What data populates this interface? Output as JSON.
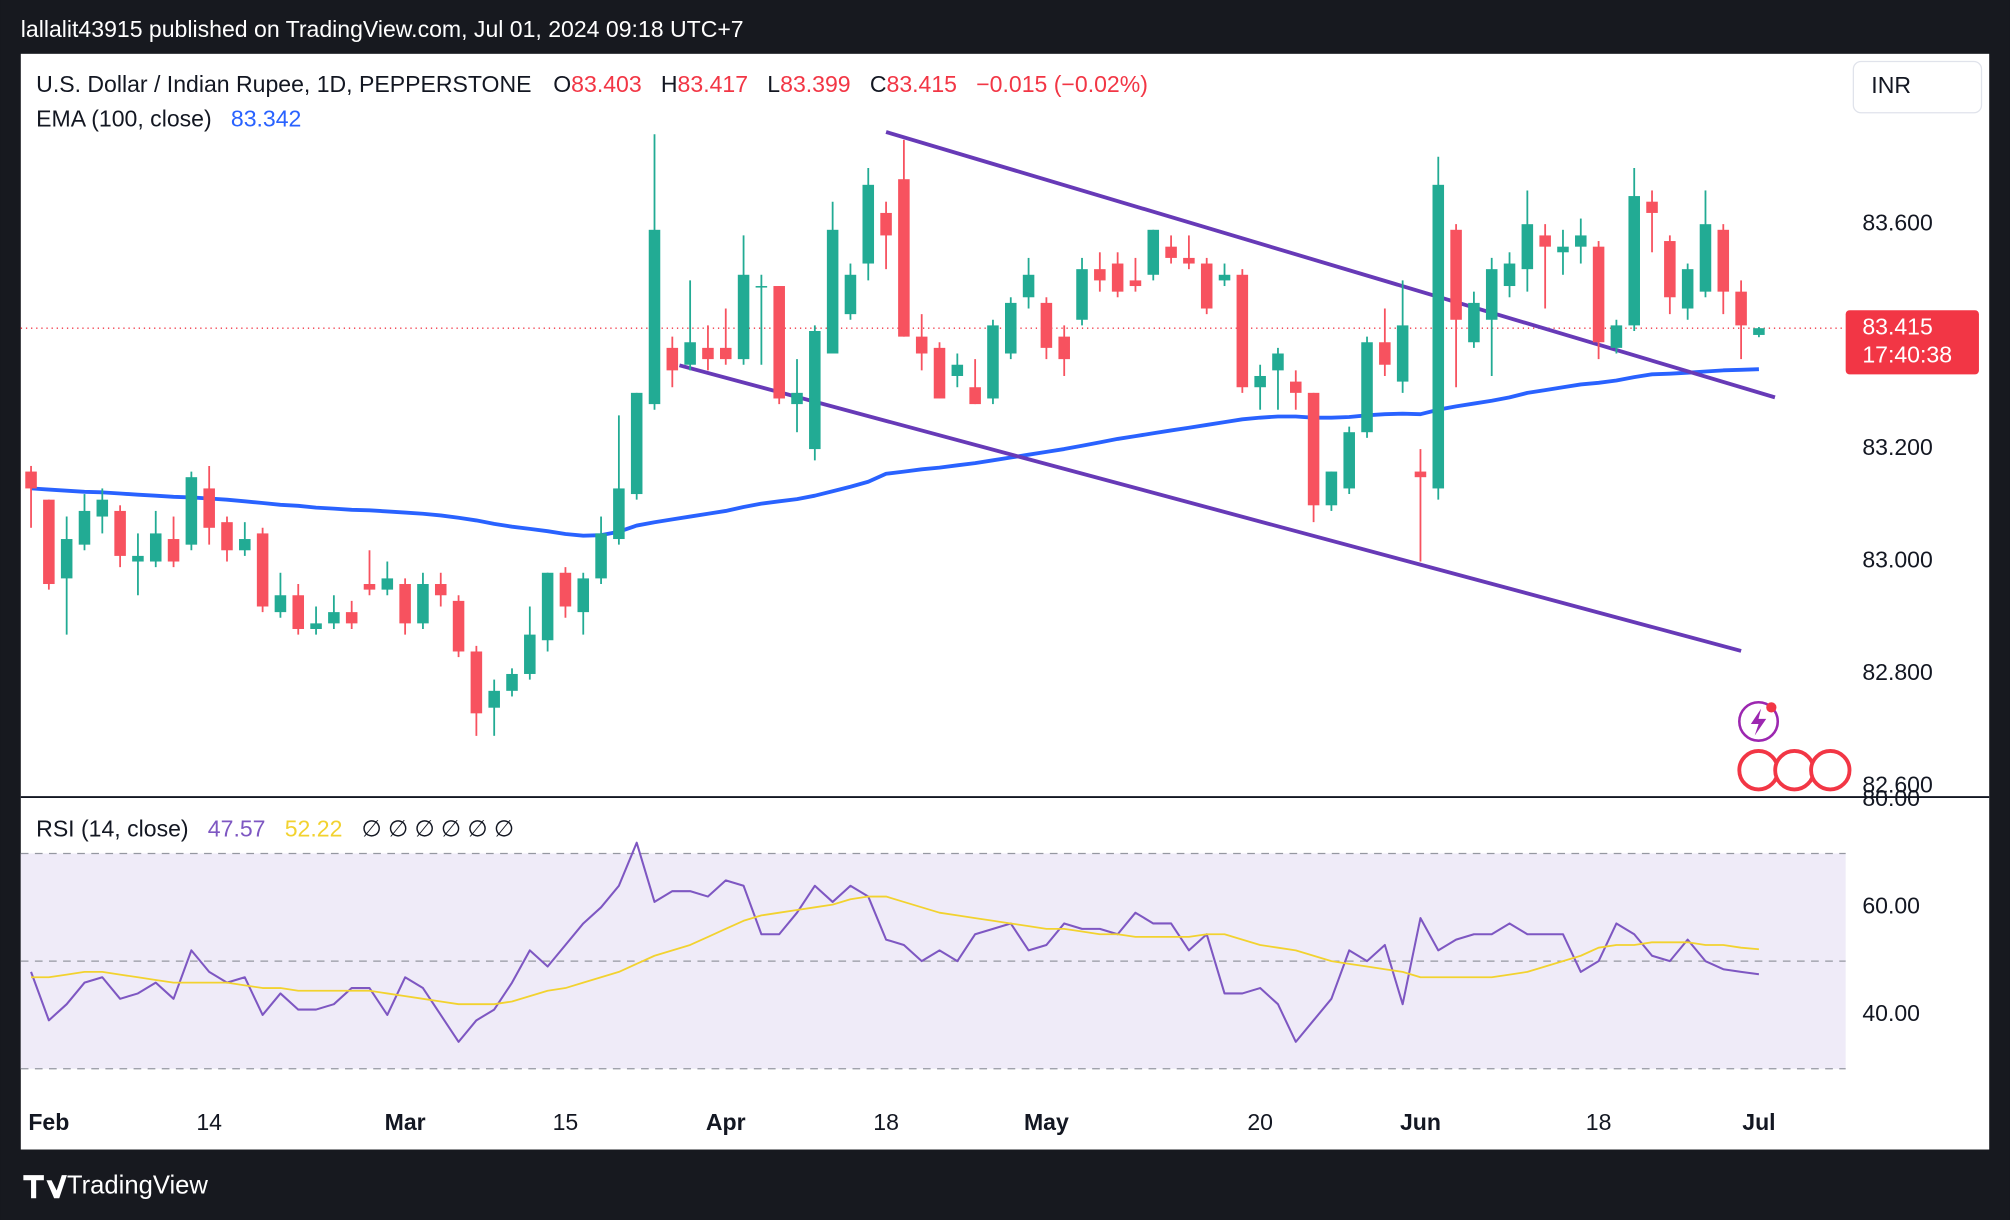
{
  "header": {
    "publisher": "lallalit43915 published on TradingView.com, Jul 01, 2024 09:18 UTC+7"
  },
  "branding": {
    "logo": "TradingView"
  },
  "chart_data": {
    "type": "candlestick",
    "title": "U.S. Dollar / Indian Rupee, 1D, PEPPERSTONE",
    "legend_labels": [
      "O",
      "H",
      "L",
      "C"
    ],
    "change_label": "−0.015 (−0.02%)",
    "currency": "INR",
    "countdown": "17:40:38",
    "up_color": "#22ab94",
    "down_color": "#f7525f",
    "price_line": true,
    "categories": [
      null,
      "Feb",
      null,
      null,
      null,
      null,
      null,
      null,
      null,
      null,
      "14",
      null,
      null,
      null,
      null,
      null,
      null,
      null,
      null,
      null,
      null,
      "Mar",
      null,
      null,
      null,
      null,
      null,
      null,
      null,
      null,
      "15",
      null,
      null,
      null,
      null,
      null,
      null,
      null,
      null,
      "Apr",
      null,
      null,
      null,
      null,
      null,
      null,
      null,
      null,
      "18",
      null,
      null,
      null,
      null,
      null,
      null,
      null,
      null,
      "May",
      null,
      null,
      null,
      null,
      null,
      null,
      null,
      null,
      null,
      null,
      null,
      "20",
      null,
      null,
      null,
      null,
      null,
      null,
      null,
      null,
      "Jun",
      null,
      null,
      null,
      null,
      null,
      null,
      null,
      null,
      null,
      "18",
      null,
      null,
      null,
      null,
      null,
      null,
      null,
      null,
      "Jul"
    ],
    "open": [
      83.16,
      83.11,
      82.97,
      83.03,
      83.08,
      83.09,
      83.0,
      83.0,
      83.04,
      83.03,
      83.13,
      83.07,
      83.02,
      83.05,
      82.91,
      82.94,
      82.88,
      82.89,
      82.91,
      82.96,
      82.95,
      82.96,
      82.89,
      82.96,
      82.93,
      82.84,
      82.74,
      82.77,
      82.8,
      82.86,
      82.98,
      82.91,
      82.97,
      83.04,
      83.12,
      83.28,
      83.38,
      83.35,
      83.38,
      83.38,
      83.36,
      83.49,
      83.49,
      83.28,
      83.2,
      83.37,
      83.44,
      83.53,
      83.62,
      83.68,
      83.4,
      83.38,
      83.33,
      83.31,
      83.29,
      83.37,
      83.47,
      83.46,
      83.4,
      83.43,
      83.52,
      83.53,
      83.5,
      83.51,
      83.56,
      83.54,
      83.53,
      83.5,
      83.51,
      83.31,
      83.34,
      83.32,
      83.3,
      83.1,
      83.13,
      83.23,
      83.39,
      83.32,
      83.16,
      83.13,
      83.59,
      83.39,
      83.43,
      83.49,
      83.52,
      83.58,
      83.55,
      83.56,
      83.56,
      83.38,
      83.42,
      83.64,
      83.57,
      83.45,
      83.48,
      83.59,
      83.48,
      83.403
    ],
    "high": [
      83.17,
      83.11,
      83.08,
      83.12,
      83.13,
      83.1,
      83.05,
      83.09,
      83.08,
      83.16,
      83.17,
      83.08,
      83.07,
      83.06,
      82.98,
      82.96,
      82.92,
      82.94,
      82.93,
      83.02,
      83.0,
      82.97,
      82.98,
      82.98,
      82.94,
      82.85,
      82.79,
      82.81,
      82.92,
      82.98,
      82.99,
      82.98,
      83.08,
      83.26,
      83.3,
      83.76,
      83.4,
      83.5,
      83.42,
      83.45,
      83.58,
      83.51,
      83.49,
      83.36,
      83.42,
      83.64,
      83.53,
      83.7,
      83.64,
      83.75,
      83.44,
      83.39,
      83.37,
      83.36,
      83.43,
      83.47,
      83.54,
      83.47,
      83.42,
      83.54,
      83.55,
      83.55,
      83.54,
      83.59,
      83.58,
      83.58,
      83.54,
      83.53,
      83.52,
      83.35,
      83.38,
      83.34,
      83.3,
      83.16,
      83.24,
      83.4,
      83.45,
      83.5,
      83.2,
      83.72,
      83.6,
      83.48,
      83.54,
      83.55,
      83.66,
      83.6,
      83.59,
      83.61,
      83.57,
      83.43,
      83.7,
      83.66,
      83.58,
      83.53,
      83.66,
      83.6,
      83.5,
      83.417
    ],
    "low": [
      83.06,
      82.95,
      82.87,
      83.02,
      83.05,
      82.99,
      82.94,
      82.99,
      82.99,
      83.02,
      83.03,
      83.0,
      83.01,
      82.91,
      82.9,
      82.87,
      82.87,
      82.88,
      82.88,
      82.94,
      82.94,
      82.87,
      82.88,
      82.92,
      82.83,
      82.69,
      82.69,
      82.76,
      82.79,
      82.84,
      82.9,
      82.87,
      82.96,
      83.03,
      83.11,
      83.27,
      83.31,
      83.34,
      83.34,
      83.35,
      83.35,
      83.35,
      83.28,
      83.23,
      83.18,
      83.37,
      83.43,
      83.5,
      83.52,
      83.4,
      83.34,
      83.29,
      83.31,
      83.28,
      83.28,
      83.36,
      83.45,
      83.36,
      83.33,
      83.42,
      83.48,
      83.47,
      83.48,
      83.5,
      83.53,
      83.52,
      83.44,
      83.49,
      83.3,
      83.27,
      83.27,
      83.27,
      83.07,
      83.09,
      83.12,
      83.22,
      83.33,
      83.3,
      83.0,
      83.11,
      83.31,
      83.38,
      83.33,
      83.47,
      83.48,
      83.45,
      83.51,
      83.53,
      83.36,
      83.37,
      83.41,
      83.55,
      83.44,
      83.43,
      83.47,
      83.44,
      83.36,
      83.399
    ],
    "close": [
      83.13,
      82.96,
      83.04,
      83.09,
      83.11,
      83.01,
      83.01,
      83.05,
      83.0,
      83.15,
      83.06,
      83.02,
      83.04,
      82.92,
      82.94,
      82.88,
      82.89,
      82.91,
      82.89,
      82.95,
      82.97,
      82.89,
      82.96,
      82.94,
      82.84,
      82.73,
      82.77,
      82.8,
      82.87,
      82.98,
      82.92,
      82.97,
      83.05,
      83.13,
      83.3,
      83.59,
      83.34,
      83.39,
      83.36,
      83.36,
      83.51,
      83.49,
      83.29,
      83.3,
      83.41,
      83.59,
      83.51,
      83.67,
      83.58,
      83.4,
      83.37,
      83.29,
      83.35,
      83.28,
      83.42,
      83.46,
      83.51,
      83.38,
      83.36,
      83.52,
      83.5,
      83.48,
      83.49,
      83.59,
      83.54,
      83.53,
      83.45,
      83.51,
      83.31,
      83.33,
      83.37,
      83.3,
      83.1,
      83.16,
      83.23,
      83.39,
      83.35,
      83.42,
      83.15,
      83.67,
      83.43,
      83.46,
      83.52,
      83.53,
      83.6,
      83.56,
      83.56,
      83.58,
      83.39,
      83.42,
      83.65,
      83.62,
      83.47,
      83.52,
      83.6,
      83.48,
      83.42,
      83.415
    ],
    "ylim": [
      82.581,
      83.903
    ],
    "yticks": [
      {
        "value": 83.6,
        "label": "83.600"
      },
      {
        "value": 83.2,
        "label": "83.200"
      },
      {
        "value": 83.0,
        "label": "83.000"
      },
      {
        "value": 82.8,
        "label": "82.800"
      },
      {
        "value": 82.6,
        "label": "82.600"
      }
    ],
    "ema": {
      "name": "EMA (100, close)",
      "color": "#2962ff",
      "values": [
        83.13,
        83.128,
        83.126,
        83.124,
        83.123,
        83.121,
        83.119,
        83.117,
        83.115,
        83.114,
        83.112,
        83.11,
        83.107,
        83.104,
        83.101,
        83.099,
        83.096,
        83.094,
        83.092,
        83.091,
        83.089,
        83.087,
        83.085,
        83.082,
        83.078,
        83.073,
        83.067,
        83.062,
        83.058,
        83.054,
        83.049,
        83.046,
        83.047,
        83.053,
        83.064,
        83.07,
        83.075,
        83.08,
        83.085,
        83.09,
        83.097,
        83.103,
        83.107,
        83.111,
        83.117,
        83.125,
        83.133,
        83.142,
        83.156,
        83.16,
        83.164,
        83.167,
        83.171,
        83.175,
        83.18,
        83.185,
        83.19,
        83.195,
        83.2,
        83.206,
        83.212,
        83.218,
        83.223,
        83.228,
        83.233,
        83.238,
        83.243,
        83.248,
        83.253,
        83.256,
        83.258,
        83.258,
        83.256,
        83.256,
        83.257,
        83.26,
        83.262,
        83.263,
        83.262,
        83.27,
        83.276,
        83.281,
        83.286,
        83.292,
        83.3,
        83.305,
        83.31,
        83.315,
        83.318,
        83.322,
        83.328,
        83.333,
        83.334,
        83.336,
        83.338,
        83.34,
        83.341,
        83.342
      ]
    },
    "trendlines": [
      {
        "color": "#673ab7",
        "start": [
          48,
          83.764
        ],
        "end": [
          97.9,
          83.292
        ]
      },
      {
        "color": "#673ab7",
        "start": [
          36.4,
          83.349
        ],
        "end": [
          96,
          82.841
        ]
      }
    ],
    "rsi": {
      "type": "line",
      "name": "RSI (14, close)",
      "na_markers": "∅ ∅ ∅ ∅ ∅ ∅",
      "ylim": [
        23.8,
        80
      ],
      "yticks": [
        {
          "value": 80,
          "label": "80.00"
        },
        {
          "value": 60,
          "label": "60.00"
        },
        {
          "value": 40,
          "label": "40.00"
        }
      ],
      "levels": [
        70,
        50,
        30
      ],
      "band_color": "#efebf8",
      "series": [
        {
          "color": "#7e57c2",
          "values": [
            48,
            39,
            42,
            46,
            47,
            43,
            44,
            46,
            43,
            52,
            48,
            46,
            47,
            40,
            44,
            41,
            41,
            42,
            45,
            45,
            40,
            47,
            45,
            40,
            35,
            39,
            41,
            46,
            52,
            49,
            53,
            57,
            60,
            64,
            72,
            61,
            63,
            63,
            62,
            65,
            64,
            55,
            55,
            59,
            64,
            61,
            64,
            62,
            54,
            53,
            50,
            52,
            50,
            55,
            56,
            57,
            52,
            53,
            57,
            56,
            56,
            55,
            59,
            57,
            57,
            52,
            55,
            44,
            44,
            45,
            42,
            35,
            39,
            43,
            52,
            50,
            53,
            42,
            58,
            52,
            54,
            55,
            55,
            57,
            55,
            55,
            55,
            48,
            50,
            57,
            55,
            51,
            50,
            54,
            50,
            48.5,
            48,
            47.57
          ]
        },
        {
          "color": "#f2d22f",
          "values": [
            47,
            47,
            47.5,
            48,
            48,
            47.5,
            47,
            46.5,
            46,
            46,
            46,
            46,
            45.5,
            45,
            45,
            44.5,
            44.5,
            44.5,
            44.5,
            44.5,
            44,
            43.5,
            43,
            42.5,
            42,
            42,
            42,
            42.5,
            43.5,
            44.5,
            45,
            46,
            47,
            48,
            49.5,
            51,
            52,
            53,
            54.5,
            56,
            57.5,
            58.5,
            59,
            59.5,
            60,
            60.5,
            61.5,
            62,
            62,
            61,
            60,
            59,
            58.5,
            58,
            57.5,
            57,
            56.5,
            56,
            56,
            55.5,
            55,
            55,
            54.5,
            54.5,
            54.5,
            54.5,
            55,
            55,
            54,
            53,
            52.5,
            52,
            51,
            50,
            49.5,
            49,
            48.5,
            48,
            47,
            47,
            47,
            47,
            47,
            47.5,
            48,
            49,
            50,
            51,
            52.5,
            53,
            53,
            53.5,
            53.5,
            53.5,
            53,
            53,
            52.5,
            52.22
          ]
        }
      ]
    }
  }
}
